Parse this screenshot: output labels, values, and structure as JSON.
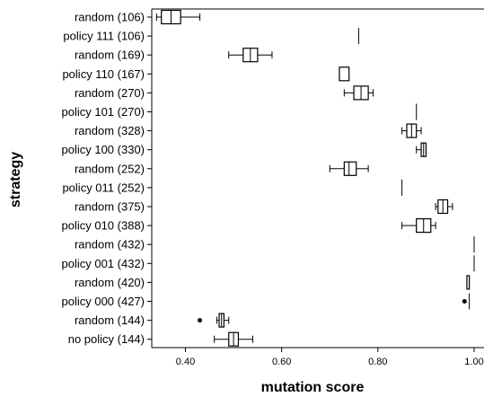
{
  "chart_data": {
    "type": "boxplot",
    "orientation": "horizontal",
    "xlabel": "mutation score",
    "ylabel": "strategy",
    "xlim": [
      0.33,
      1.0
    ],
    "xticks": [
      0.4,
      0.6,
      0.8,
      1.0
    ],
    "xtick_labels": [
      "0.40",
      "0.60",
      "0.80",
      "1.00"
    ],
    "grid": false,
    "categories": [
      "random (106)",
      "policy 111 (106)",
      "random (169)",
      "policy 110 (167)",
      "random (270)",
      "policy 101 (270)",
      "random (328)",
      "policy 100 (330)",
      "random (252)",
      "policy 011 (252)",
      "random (375)",
      "policy 010 (388)",
      "random (432)",
      "policy 001 (432)",
      "random (420)",
      "policy 000 (427)",
      "random (144)",
      "no policy (144)"
    ],
    "boxes": [
      {
        "whisker_low": 0.34,
        "q1": 0.35,
        "median": 0.37,
        "q3": 0.39,
        "whisker_high": 0.43,
        "outliers": []
      },
      {
        "whisker_low": 0.76,
        "q1": 0.76,
        "median": 0.76,
        "q3": 0.76,
        "whisker_high": 0.76,
        "outliers": []
      },
      {
        "whisker_low": 0.49,
        "q1": 0.52,
        "median": 0.535,
        "q3": 0.55,
        "whisker_high": 0.58,
        "outliers": []
      },
      {
        "whisker_low": 0.72,
        "q1": 0.72,
        "median": 0.72,
        "q3": 0.74,
        "whisker_high": 0.74,
        "outliers": []
      },
      {
        "whisker_low": 0.73,
        "q1": 0.75,
        "median": 0.765,
        "q3": 0.78,
        "whisker_high": 0.79,
        "outliers": []
      },
      {
        "whisker_low": 0.88,
        "q1": 0.88,
        "median": 0.88,
        "q3": 0.88,
        "whisker_high": 0.88,
        "outliers": []
      },
      {
        "whisker_low": 0.85,
        "q1": 0.86,
        "median": 0.87,
        "q3": 0.88,
        "whisker_high": 0.89,
        "outliers": []
      },
      {
        "whisker_low": 0.88,
        "q1": 0.89,
        "median": 0.895,
        "q3": 0.9,
        "whisker_high": 0.9,
        "outliers": []
      },
      {
        "whisker_low": 0.7,
        "q1": 0.73,
        "median": 0.74,
        "q3": 0.755,
        "whisker_high": 0.78,
        "outliers": []
      },
      {
        "whisker_low": 0.85,
        "q1": 0.85,
        "median": 0.85,
        "q3": 0.85,
        "whisker_high": 0.85,
        "outliers": []
      },
      {
        "whisker_low": 0.92,
        "q1": 0.925,
        "median": 0.935,
        "q3": 0.945,
        "whisker_high": 0.955,
        "outliers": []
      },
      {
        "whisker_low": 0.85,
        "q1": 0.88,
        "median": 0.895,
        "q3": 0.91,
        "whisker_high": 0.92,
        "outliers": []
      },
      {
        "whisker_low": 1.0,
        "q1": 1.0,
        "median": 1.0,
        "q3": 1.0,
        "whisker_high": 1.0,
        "outliers": []
      },
      {
        "whisker_low": 1.0,
        "q1": 1.0,
        "median": 1.0,
        "q3": 1.0,
        "whisker_high": 1.0,
        "outliers": []
      },
      {
        "whisker_low": 0.985,
        "q1": 0.985,
        "median": 0.985,
        "q3": 0.99,
        "whisker_high": 0.99,
        "outliers": []
      },
      {
        "whisker_low": 0.99,
        "q1": 0.99,
        "median": 0.99,
        "q3": 0.99,
        "whisker_high": 0.99,
        "outliers": [
          0.98
        ]
      },
      {
        "whisker_low": 0.465,
        "q1": 0.47,
        "median": 0.475,
        "q3": 0.48,
        "whisker_high": 0.49,
        "outliers": [
          0.43
        ]
      },
      {
        "whisker_low": 0.46,
        "q1": 0.49,
        "median": 0.5,
        "q3": 0.51,
        "whisker_high": 0.54,
        "outliers": []
      }
    ]
  }
}
